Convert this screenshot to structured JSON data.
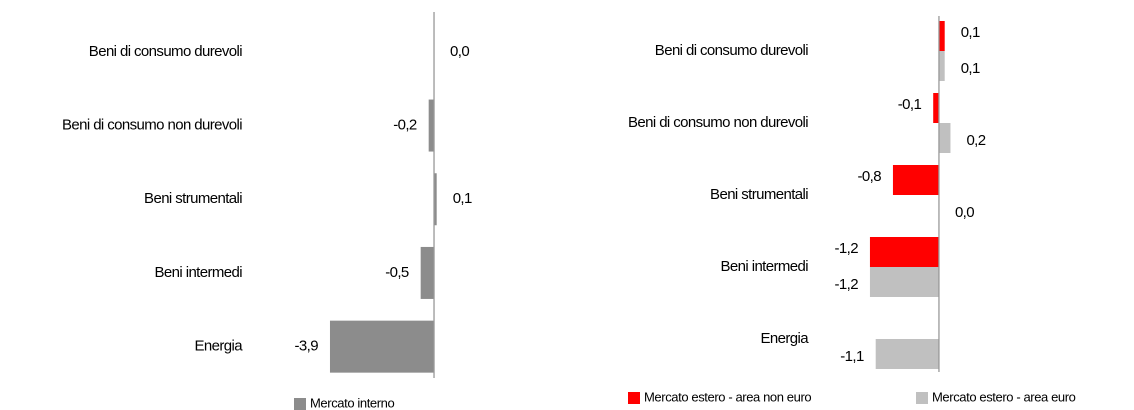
{
  "chart_data": [
    {
      "type": "bar",
      "orientation": "horizontal",
      "categories": [
        "Beni di consumo durevoli",
        "Beni di consumo non durevoli",
        "Beni strumentali",
        "Beni intermedi",
        "Energia"
      ],
      "series": [
        {
          "name": "Mercato interno",
          "color": "#8c8c8c",
          "values": [
            0.0,
            -0.2,
            0.1,
            -0.5,
            -3.9
          ],
          "value_labels": [
            "0,0",
            "-0,2",
            "0,1",
            "-0,5",
            "-3,9"
          ]
        }
      ],
      "xlim": [
        -4,
        1
      ]
    },
    {
      "type": "bar",
      "orientation": "horizontal",
      "categories": [
        "Beni di consumo durevoli",
        "Beni di consumo non durevoli",
        "Beni strumentali",
        "Beni intermedi",
        "Energia"
      ],
      "series": [
        {
          "name": "Mercato estero - area non euro",
          "color": "#ff0000",
          "values": [
            0.1,
            -0.1,
            -0.8,
            -1.2,
            null
          ],
          "value_labels": [
            "0,1",
            "-0,1",
            "-0,8",
            "-1,2",
            null
          ]
        },
        {
          "name": "Mercato estero - area euro",
          "color": "#c0c0c0",
          "values": [
            0.1,
            0.2,
            0.0,
            -1.2,
            -1.1
          ],
          "value_labels": [
            "0,1",
            "0,2",
            "0,0",
            "-1,2",
            "-1,1"
          ]
        }
      ],
      "xlim": [
        -1.5,
        0.5
      ]
    }
  ]
}
